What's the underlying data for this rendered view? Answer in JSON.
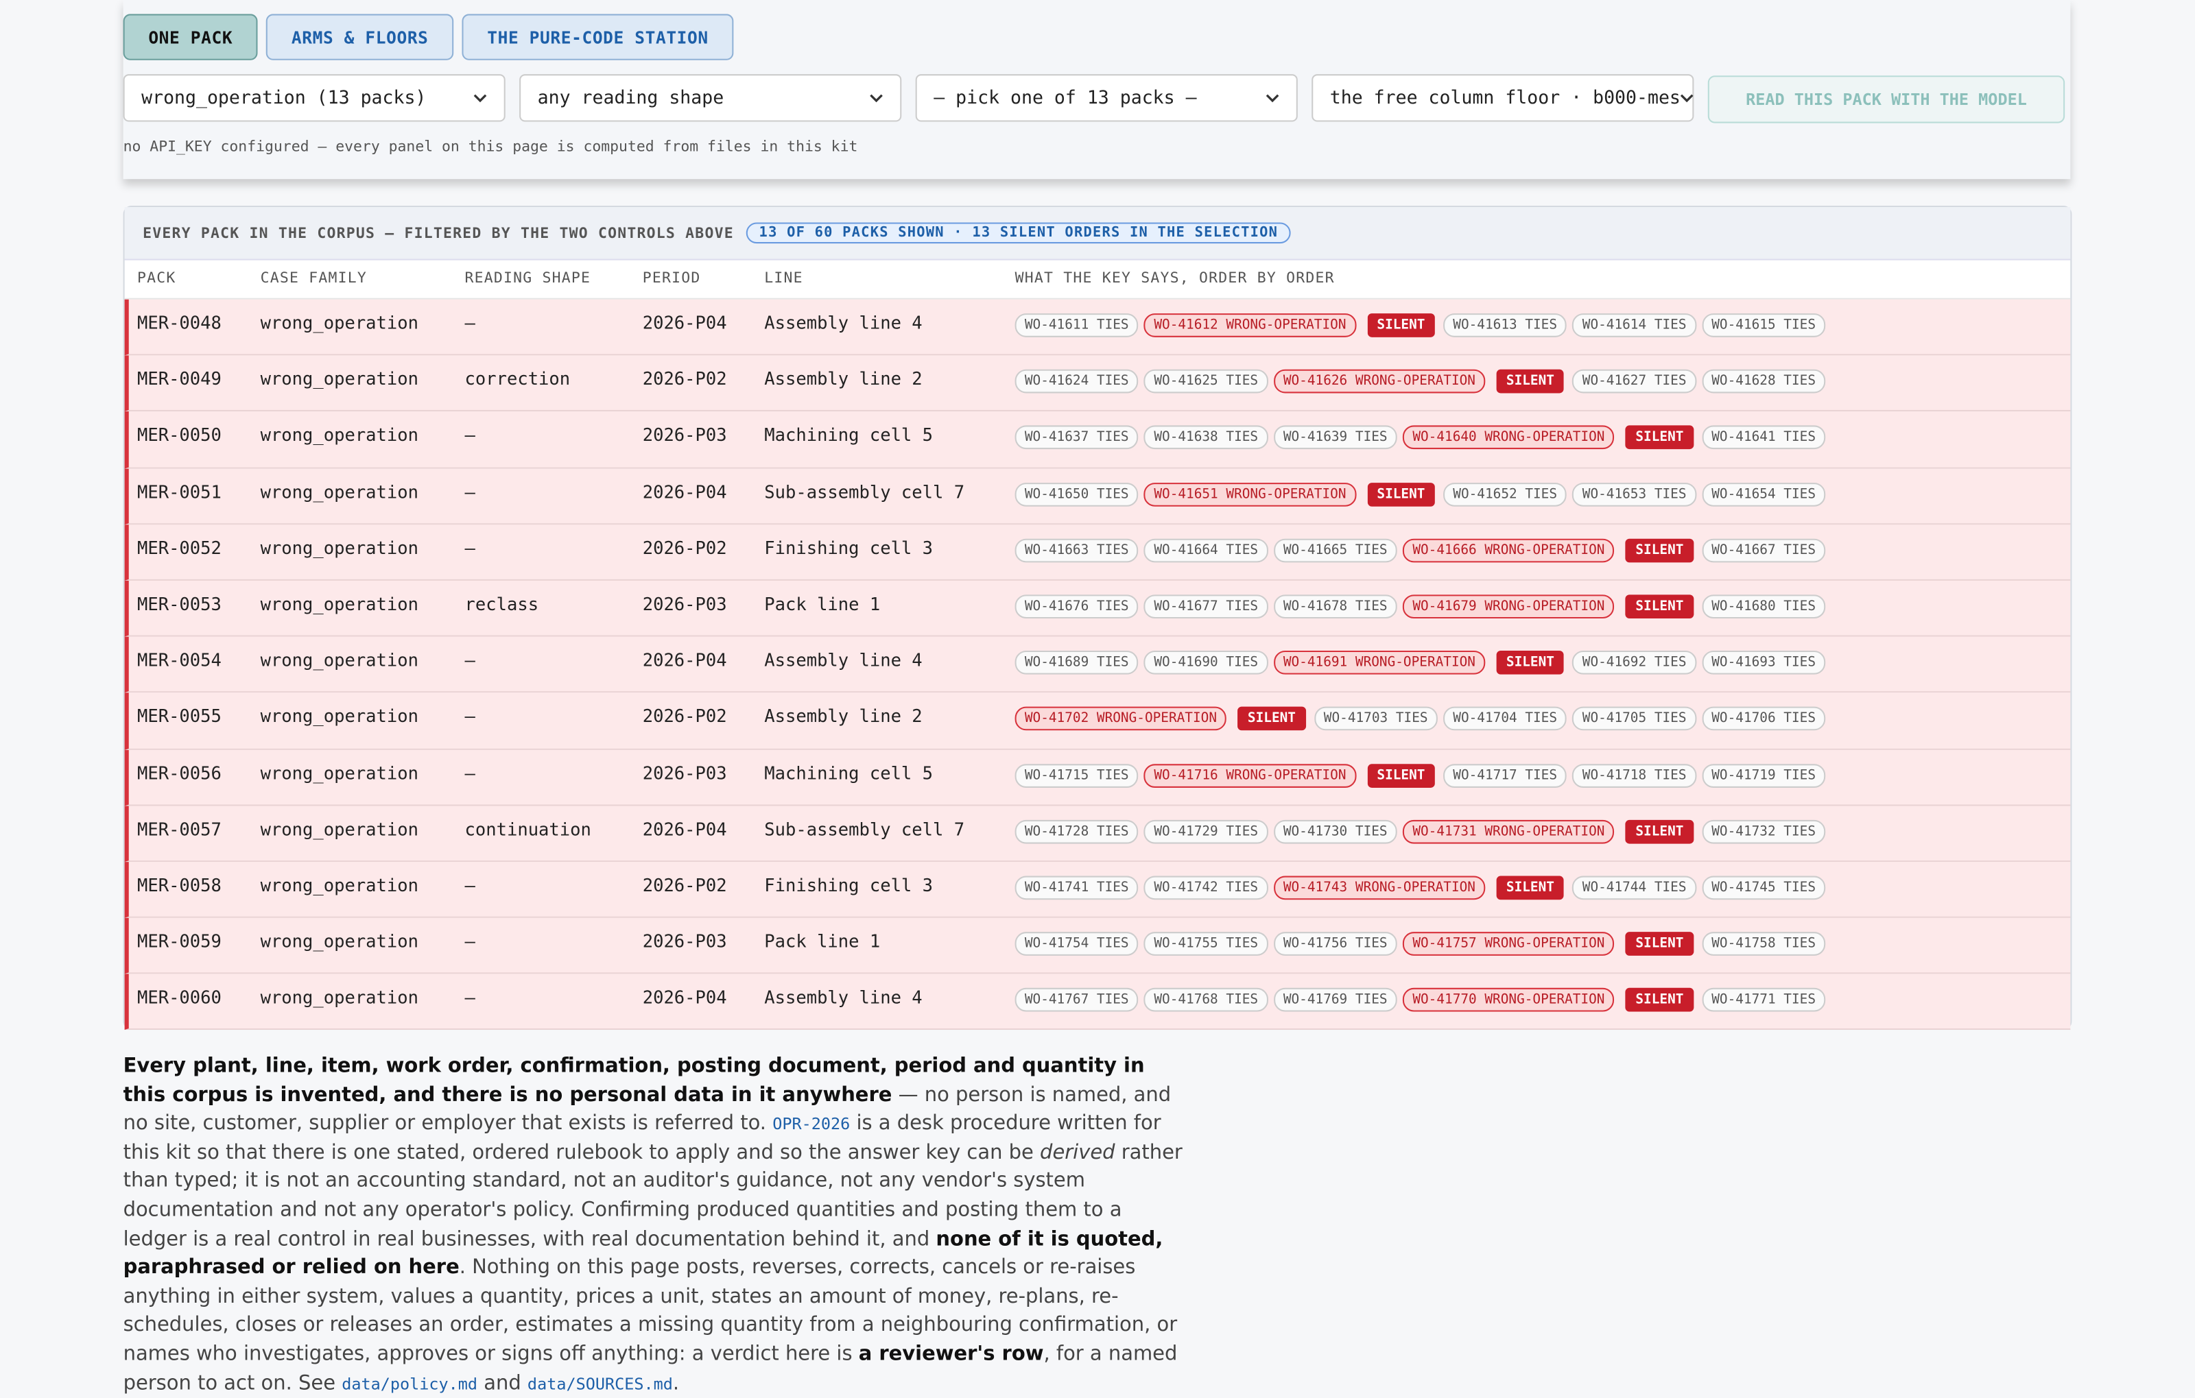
{
  "tabs": [
    "ONE PACK",
    "ARMS & FLOORS",
    "THE PURE-CODE STATION"
  ],
  "selects": [
    "wrong_operation (13 packs)",
    "any reading shape",
    "— pick one of 13 packs —",
    "the free column floor · b000-mes"
  ],
  "read_button": "READ THIS PACK WITH THE MODEL",
  "note": "no API_KEY configured — every panel on this page is computed from files in this kit",
  "table": {
    "caption": "EVERY PACK IN THE CORPUS — FILTERED BY THE TWO CONTROLS ABOVE",
    "badge": "13 OF 60 PACKS SHOWN · 13 SILENT ORDERS IN THE SELECTION",
    "columns": [
      "PACK",
      "CASE FAMILY",
      "READING SHAPE",
      "PERIOD",
      "LINE",
      "WHAT THE KEY SAYS, ORDER BY ORDER"
    ],
    "rows": [
      {
        "pack": "MER-0048",
        "family": "wrong_operation",
        "shape": "—",
        "period": "2026-P04",
        "line": "Assembly line 4",
        "orders": [
          {
            "text": "WO-41611 TIES",
            "kind": "ties"
          },
          {
            "text": "WO-41612 WRONG-OPERATION",
            "kind": "wrong"
          },
          {
            "text": "SILENT",
            "kind": "silent"
          },
          {
            "text": "WO-41613 TIES",
            "kind": "ties"
          },
          {
            "text": "WO-41614 TIES",
            "kind": "ties"
          },
          {
            "text": "WO-41615 TIES",
            "kind": "ties"
          }
        ]
      },
      {
        "pack": "MER-0049",
        "family": "wrong_operation",
        "shape": "correction",
        "period": "2026-P02",
        "line": "Assembly line 2",
        "orders": [
          {
            "text": "WO-41624 TIES",
            "kind": "ties"
          },
          {
            "text": "WO-41625 TIES",
            "kind": "ties"
          },
          {
            "text": "WO-41626 WRONG-OPERATION",
            "kind": "wrong"
          },
          {
            "text": "SILENT",
            "kind": "silent"
          },
          {
            "text": "WO-41627 TIES",
            "kind": "ties"
          },
          {
            "text": "WO-41628 TIES",
            "kind": "ties"
          }
        ]
      },
      {
        "pack": "MER-0050",
        "family": "wrong_operation",
        "shape": "—",
        "period": "2026-P03",
        "line": "Machining cell 5",
        "orders": [
          {
            "text": "WO-41637 TIES",
            "kind": "ties"
          },
          {
            "text": "WO-41638 TIES",
            "kind": "ties"
          },
          {
            "text": "WO-41639 TIES",
            "kind": "ties"
          },
          {
            "text": "WO-41640 WRONG-OPERATION",
            "kind": "wrong"
          },
          {
            "text": "SILENT",
            "kind": "silent"
          },
          {
            "text": "WO-41641 TIES",
            "kind": "ties"
          }
        ]
      },
      {
        "pack": "MER-0051",
        "family": "wrong_operation",
        "shape": "—",
        "period": "2026-P04",
        "line": "Sub-assembly cell 7",
        "orders": [
          {
            "text": "WO-41650 TIES",
            "kind": "ties"
          },
          {
            "text": "WO-41651 WRONG-OPERATION",
            "kind": "wrong"
          },
          {
            "text": "SILENT",
            "kind": "silent"
          },
          {
            "text": "WO-41652 TIES",
            "kind": "ties"
          },
          {
            "text": "WO-41653 TIES",
            "kind": "ties"
          },
          {
            "text": "WO-41654 TIES",
            "kind": "ties"
          }
        ]
      },
      {
        "pack": "MER-0052",
        "family": "wrong_operation",
        "shape": "—",
        "period": "2026-P02",
        "line": "Finishing cell 3",
        "orders": [
          {
            "text": "WO-41663 TIES",
            "kind": "ties"
          },
          {
            "text": "WO-41664 TIES",
            "kind": "ties"
          },
          {
            "text": "WO-41665 TIES",
            "kind": "ties"
          },
          {
            "text": "WO-41666 WRONG-OPERATION",
            "kind": "wrong"
          },
          {
            "text": "SILENT",
            "kind": "silent"
          },
          {
            "text": "WO-41667 TIES",
            "kind": "ties"
          }
        ]
      },
      {
        "pack": "MER-0053",
        "family": "wrong_operation",
        "shape": "reclass",
        "period": "2026-P03",
        "line": "Pack line 1",
        "orders": [
          {
            "text": "WO-41676 TIES",
            "kind": "ties"
          },
          {
            "text": "WO-41677 TIES",
            "kind": "ties"
          },
          {
            "text": "WO-41678 TIES",
            "kind": "ties"
          },
          {
            "text": "WO-41679 WRONG-OPERATION",
            "kind": "wrong"
          },
          {
            "text": "SILENT",
            "kind": "silent"
          },
          {
            "text": "WO-41680 TIES",
            "kind": "ties"
          }
        ]
      },
      {
        "pack": "MER-0054",
        "family": "wrong_operation",
        "shape": "—",
        "period": "2026-P04",
        "line": "Assembly line 4",
        "orders": [
          {
            "text": "WO-41689 TIES",
            "kind": "ties"
          },
          {
            "text": "WO-41690 TIES",
            "kind": "ties"
          },
          {
            "text": "WO-41691 WRONG-OPERATION",
            "kind": "wrong"
          },
          {
            "text": "SILENT",
            "kind": "silent"
          },
          {
            "text": "WO-41692 TIES",
            "kind": "ties"
          },
          {
            "text": "WO-41693 TIES",
            "kind": "ties"
          }
        ]
      },
      {
        "pack": "MER-0055",
        "family": "wrong_operation",
        "shape": "—",
        "period": "2026-P02",
        "line": "Assembly line 2",
        "orders": [
          {
            "text": "WO-41702 WRONG-OPERATION",
            "kind": "wrong"
          },
          {
            "text": "SILENT",
            "kind": "silent"
          },
          {
            "text": "WO-41703 TIES",
            "kind": "ties"
          },
          {
            "text": "WO-41704 TIES",
            "kind": "ties"
          },
          {
            "text": "WO-41705 TIES",
            "kind": "ties"
          },
          {
            "text": "WO-41706 TIES",
            "kind": "ties"
          }
        ]
      },
      {
        "pack": "MER-0056",
        "family": "wrong_operation",
        "shape": "—",
        "period": "2026-P03",
        "line": "Machining cell 5",
        "orders": [
          {
            "text": "WO-41715 TIES",
            "kind": "ties"
          },
          {
            "text": "WO-41716 WRONG-OPERATION",
            "kind": "wrong"
          },
          {
            "text": "SILENT",
            "kind": "silent"
          },
          {
            "text": "WO-41717 TIES",
            "kind": "ties"
          },
          {
            "text": "WO-41718 TIES",
            "kind": "ties"
          },
          {
            "text": "WO-41719 TIES",
            "kind": "ties"
          }
        ]
      },
      {
        "pack": "MER-0057",
        "family": "wrong_operation",
        "shape": "continuation",
        "period": "2026-P04",
        "line": "Sub-assembly cell 7",
        "orders": [
          {
            "text": "WO-41728 TIES",
            "kind": "ties"
          },
          {
            "text": "WO-41729 TIES",
            "kind": "ties"
          },
          {
            "text": "WO-41730 TIES",
            "kind": "ties"
          },
          {
            "text": "WO-41731 WRONG-OPERATION",
            "kind": "wrong"
          },
          {
            "text": "SILENT",
            "kind": "silent"
          },
          {
            "text": "WO-41732 TIES",
            "kind": "ties"
          }
        ]
      },
      {
        "pack": "MER-0058",
        "family": "wrong_operation",
        "shape": "—",
        "period": "2026-P02",
        "line": "Finishing cell 3",
        "orders": [
          {
            "text": "WO-41741 TIES",
            "kind": "ties"
          },
          {
            "text": "WO-41742 TIES",
            "kind": "ties"
          },
          {
            "text": "WO-41743 WRONG-OPERATION",
            "kind": "wrong"
          },
          {
            "text": "SILENT",
            "kind": "silent"
          },
          {
            "text": "WO-41744 TIES",
            "kind": "ties"
          },
          {
            "text": "WO-41745 TIES",
            "kind": "ties"
          }
        ]
      },
      {
        "pack": "MER-0059",
        "family": "wrong_operation",
        "shape": "—",
        "period": "2026-P03",
        "line": "Pack line 1",
        "orders": [
          {
            "text": "WO-41754 TIES",
            "kind": "ties"
          },
          {
            "text": "WO-41755 TIES",
            "kind": "ties"
          },
          {
            "text": "WO-41756 TIES",
            "kind": "ties"
          },
          {
            "text": "WO-41757 WRONG-OPERATION",
            "kind": "wrong"
          },
          {
            "text": "SILENT",
            "kind": "silent"
          },
          {
            "text": "WO-41758 TIES",
            "kind": "ties"
          }
        ]
      },
      {
        "pack": "MER-0060",
        "family": "wrong_operation",
        "shape": "—",
        "period": "2026-P04",
        "line": "Assembly line 4",
        "orders": [
          {
            "text": "WO-41767 TIES",
            "kind": "ties"
          },
          {
            "text": "WO-41768 TIES",
            "kind": "ties"
          },
          {
            "text": "WO-41769 TIES",
            "kind": "ties"
          },
          {
            "text": "WO-41770 WRONG-OPERATION",
            "kind": "wrong"
          },
          {
            "text": "SILENT",
            "kind": "silent"
          },
          {
            "text": "WO-41771 TIES",
            "kind": "ties"
          }
        ]
      }
    ]
  },
  "paragraph": [
    {
      "text": "Every plant, line, item, work order, confirmation, posting document, period and quantity in this corpus is invented, and there is no personal data in it anywhere",
      "style": "b"
    },
    {
      "text": " — no person is named, and no site, customer, supplier or employer that exists is referred to. ",
      "style": "p"
    },
    {
      "text": "OPR-2026",
      "style": "code"
    },
    {
      "text": " is a desk procedure written for this kit so that there is one stated, ordered rulebook to apply and so the answer key can be ",
      "style": "p"
    },
    {
      "text": "derived",
      "style": "i"
    },
    {
      "text": " rather than typed; it is not an accounting standard, not an auditor's guidance, not any vendor's system documentation and not any operator's policy. Confirming produced quantities and posting them to a ledger is a real control in real businesses, with real documentation behind it, and ",
      "style": "p"
    },
    {
      "text": "none of it is quoted, paraphrased or relied on here",
      "style": "b"
    },
    {
      "text": ". Nothing on this page posts, reverses, corrects, cancels or re-raises anything in either system, values a quantity, prices a unit, states an amount of money, re-plans, re-schedules, closes or releases an order, estimates a missing quantity from a neighbouring confirmation, or names who investigates, approves or signs off anything: a verdict here is ",
      "style": "p"
    },
    {
      "text": "a reviewer's row",
      "style": "b"
    },
    {
      "text": ", for a named person to act on. See ",
      "style": "p"
    },
    {
      "text": "data/policy.md",
      "style": "code"
    },
    {
      "text": " and ",
      "style": "p"
    },
    {
      "text": "data/SOURCES.md",
      "style": "code"
    },
    {
      "text": ".",
      "style": "p"
    }
  ]
}
